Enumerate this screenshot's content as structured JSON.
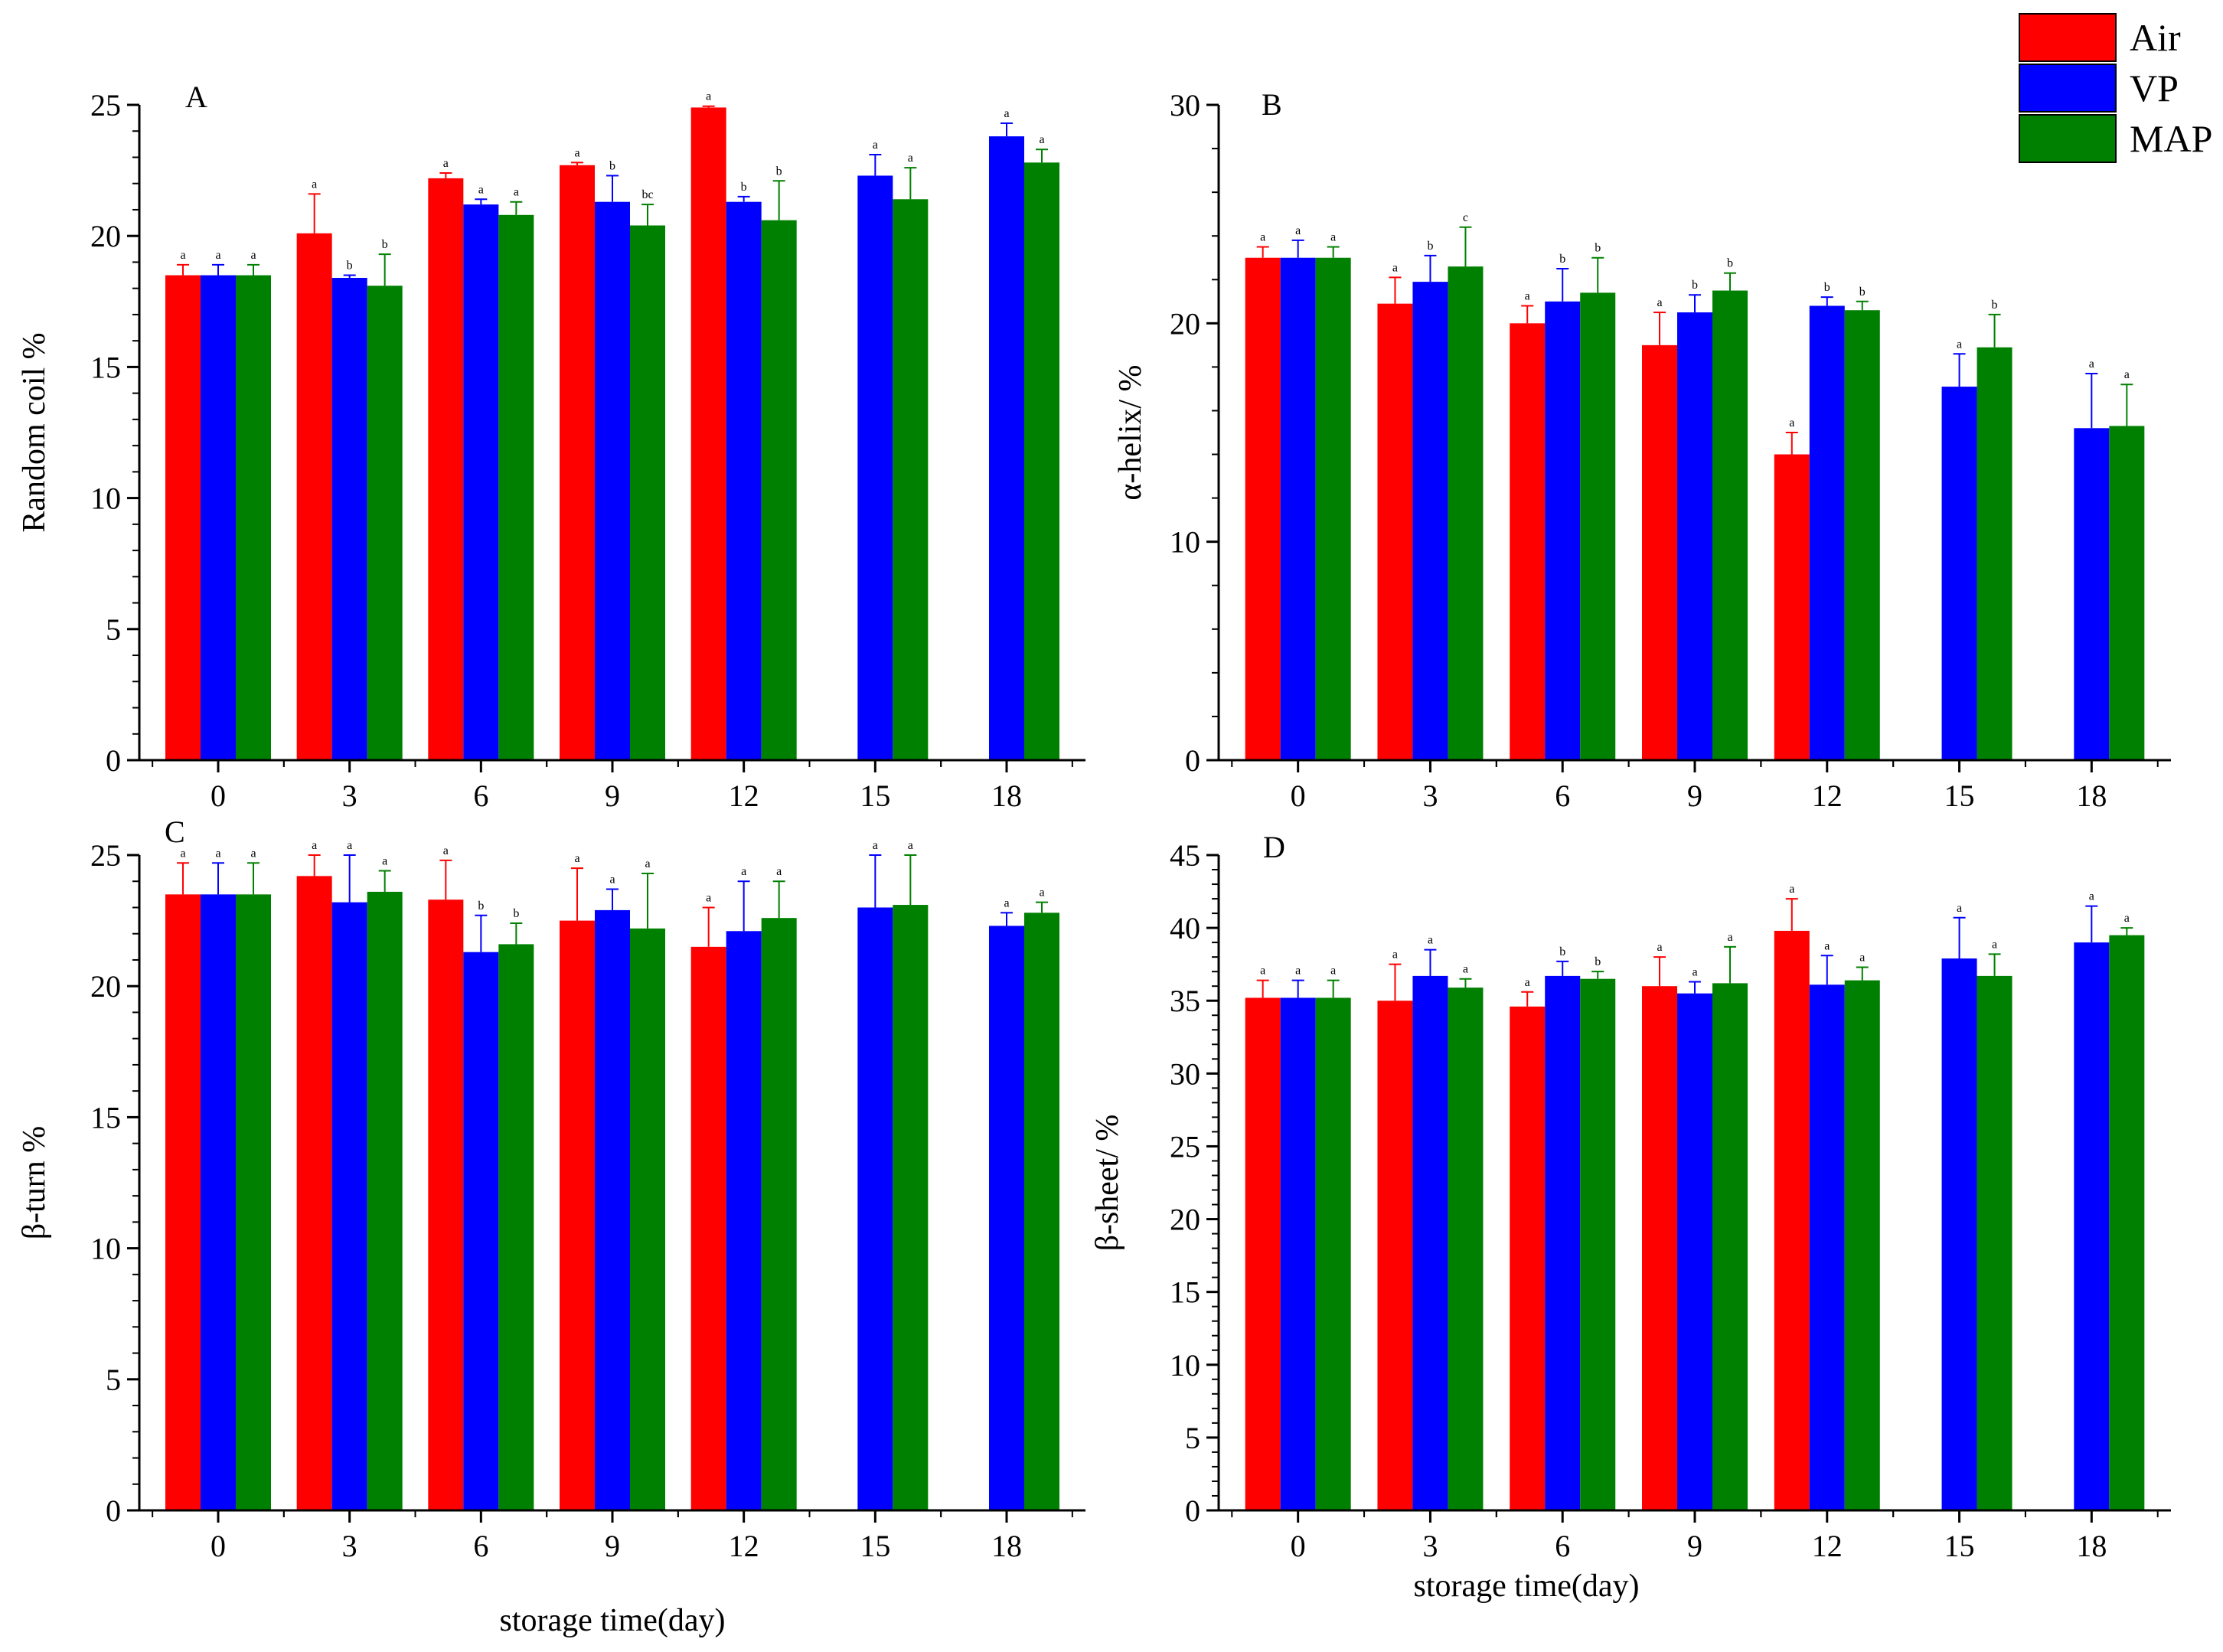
{
  "legend": {
    "items": [
      {
        "label": "Air",
        "color": "#ff0000"
      },
      {
        "label": "VP",
        "color": "#0000ff"
      },
      {
        "label": "MAP",
        "color": "#008000"
      }
    ]
  },
  "xlabel_bottom": "storage time(day)",
  "chart_data": [
    {
      "type": "bar",
      "panel": "A",
      "title": "",
      "xlabel": "",
      "ylabel": "Random coil %",
      "ylim": [
        0,
        25
      ],
      "yticks": [
        0,
        5,
        10,
        15,
        20,
        25
      ],
      "categories": [
        "0",
        "3",
        "6",
        "9",
        "12",
        "15",
        "18"
      ],
      "series": [
        {
          "name": "Air",
          "values": [
            18.5,
            20.1,
            22.2,
            22.7,
            24.9,
            null,
            null
          ],
          "errors": [
            0.4,
            1.5,
            0.2,
            0.1,
            0.05,
            null,
            null
          ],
          "sig": [
            "a",
            "a",
            "a",
            "a",
            "a",
            "",
            ""
          ]
        },
        {
          "name": "VP",
          "values": [
            18.5,
            18.4,
            21.2,
            21.3,
            21.3,
            22.3,
            23.8
          ],
          "errors": [
            0.4,
            0.1,
            0.2,
            1.0,
            0.2,
            0.8,
            0.5
          ],
          "sig": [
            "a",
            "b",
            "a",
            "b",
            "b",
            "a",
            "a"
          ]
        },
        {
          "name": "MAP",
          "values": [
            18.5,
            18.1,
            20.8,
            20.4,
            20.6,
            21.4,
            22.8
          ],
          "errors": [
            0.4,
            1.2,
            0.5,
            0.8,
            1.5,
            1.2,
            0.5
          ],
          "sig": [
            "a",
            "b",
            "a",
            "bc",
            "b",
            "a",
            "a"
          ]
        }
      ]
    },
    {
      "type": "bar",
      "panel": "B",
      "title": "",
      "xlabel": "",
      "ylabel": "α-helix/ %",
      "ylim": [
        0,
        30
      ],
      "yticks": [
        0,
        10,
        20,
        30
      ],
      "categories": [
        "0",
        "3",
        "6",
        "9",
        "12",
        "15",
        "18"
      ],
      "series": [
        {
          "name": "Air",
          "values": [
            23.0,
            20.9,
            20.0,
            19.0,
            14.0,
            null,
            null
          ],
          "errors": [
            0.5,
            1.2,
            0.8,
            1.5,
            1.0,
            null,
            null
          ],
          "sig": [
            "a",
            "a",
            "a",
            "a",
            "a",
            "",
            ""
          ]
        },
        {
          "name": "VP",
          "values": [
            23.0,
            21.9,
            21.0,
            20.5,
            20.8,
            17.1,
            15.2
          ],
          "errors": [
            0.8,
            1.2,
            1.5,
            0.8,
            0.4,
            1.5,
            2.5
          ],
          "sig": [
            "a",
            "b",
            "b",
            "b",
            "b",
            "a",
            "a"
          ]
        },
        {
          "name": "MAP",
          "values": [
            23.0,
            22.6,
            21.4,
            21.5,
            20.6,
            18.9,
            15.3
          ],
          "errors": [
            0.5,
            1.8,
            1.6,
            0.8,
            0.4,
            1.5,
            1.9
          ],
          "sig": [
            "a",
            "c",
            "b",
            "b",
            "b",
            "b",
            "a"
          ]
        }
      ]
    },
    {
      "type": "bar",
      "panel": "C",
      "title": "",
      "xlabel": "",
      "ylabel": "β-turn %",
      "ylim": [
        0,
        25
      ],
      "yticks": [
        0,
        5,
        10,
        15,
        20,
        25
      ],
      "categories": [
        "0",
        "3",
        "6",
        "9",
        "12",
        "15",
        "18"
      ],
      "series": [
        {
          "name": "Air",
          "values": [
            23.5,
            24.2,
            23.3,
            22.5,
            21.5,
            null,
            null
          ],
          "errors": [
            1.2,
            0.8,
            1.5,
            2.0,
            1.5,
            null,
            null
          ],
          "sig": [
            "a",
            "a",
            "a",
            "a",
            "a",
            "",
            ""
          ]
        },
        {
          "name": "VP",
          "values": [
            23.5,
            23.2,
            21.3,
            22.9,
            22.1,
            23.0,
            22.3
          ],
          "errors": [
            1.2,
            1.8,
            1.4,
            0.8,
            1.9,
            2.0,
            0.5
          ],
          "sig": [
            "a",
            "a",
            "b",
            "a",
            "a",
            "a",
            "a"
          ]
        },
        {
          "name": "MAP",
          "values": [
            23.5,
            23.6,
            21.6,
            22.2,
            22.6,
            23.1,
            22.8
          ],
          "errors": [
            1.2,
            0.8,
            0.8,
            2.1,
            1.4,
            1.9,
            0.4
          ],
          "sig": [
            "a",
            "a",
            "b",
            "a",
            "a",
            "a",
            "a"
          ]
        }
      ]
    },
    {
      "type": "bar",
      "panel": "D",
      "title": "",
      "xlabel": "storage time(day)",
      "ylabel": "β-sheet/ %",
      "ylim": [
        0,
        45
      ],
      "yticks": [
        0,
        5,
        10,
        15,
        20,
        25,
        30,
        35,
        40,
        45
      ],
      "categories": [
        "0",
        "3",
        "6",
        "9",
        "12",
        "15",
        "18"
      ],
      "series": [
        {
          "name": "Air",
          "values": [
            35.2,
            35.0,
            34.6,
            36.0,
            39.8,
            null,
            null
          ],
          "errors": [
            1.2,
            2.5,
            1.0,
            2.0,
            2.2,
            null,
            null
          ],
          "sig": [
            "a",
            "a",
            "a",
            "a",
            "a",
            "",
            ""
          ]
        },
        {
          "name": "VP",
          "values": [
            35.2,
            36.7,
            36.7,
            35.5,
            36.1,
            37.9,
            39.0
          ],
          "errors": [
            1.2,
            1.8,
            1.0,
            0.8,
            2.0,
            2.8,
            2.5
          ],
          "sig": [
            "a",
            "a",
            "b",
            "a",
            "a",
            "a",
            "a"
          ]
        },
        {
          "name": "MAP",
          "values": [
            35.2,
            35.9,
            36.5,
            36.2,
            36.4,
            36.7,
            39.5
          ],
          "errors": [
            1.2,
            0.6,
            0.5,
            2.5,
            0.9,
            1.5,
            0.5
          ],
          "sig": [
            "a",
            "a",
            "b",
            "a",
            "a",
            "a",
            "a"
          ]
        }
      ]
    }
  ]
}
